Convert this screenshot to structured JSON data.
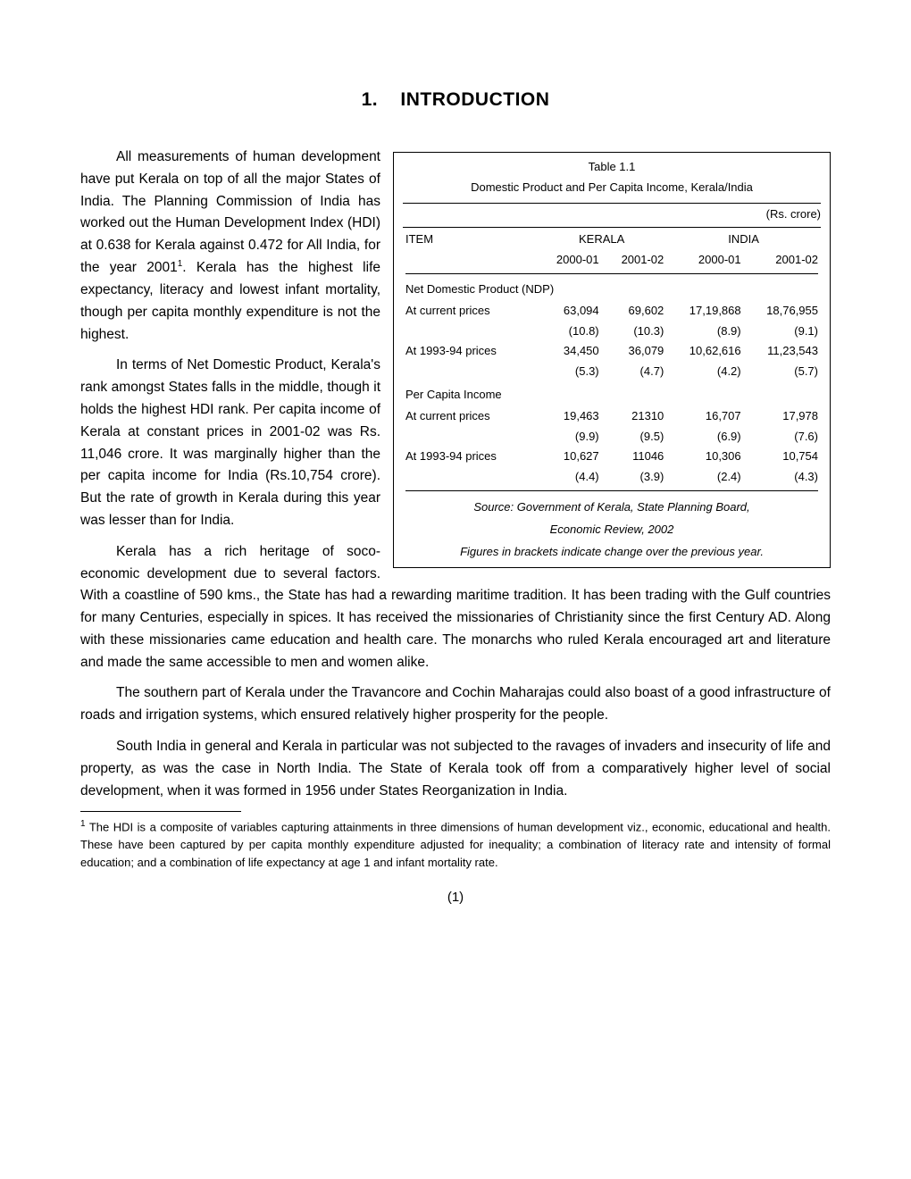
{
  "chapter": {
    "number": "1.",
    "title": "INTRODUCTION"
  },
  "paragraphs": {
    "p1a": "All measurements of human development have put Kerala on top of all the major States of India. The Planning Commission of India has worked out the Human Development Index (HDI) at 0.638 for Kerala against 0.472 for All India, for the year 2001",
    "p1sup": "1",
    "p1b": ". Kerala has the highest life expectancy, literacy and lowest infant mortality, though per capita monthly expenditure is not the highest.",
    "p2": "In terms of Net Domestic Product, Kerala's rank amongst States falls in the middle, though it holds the highest HDI rank. Per capita income of Kerala at constant prices in 2001-02 was Rs. 11,046 crore. It was marginally higher than the per capita income for India (Rs.10,754 crore). But the rate of growth in Kerala during this year was lesser than for India.",
    "p3": "Kerala has a rich heritage of soco-economic development due to several factors. With a coastline of 590 kms., the State has had a rewarding maritime tradition. It has been trading with the Gulf countries for many Centuries, especially in spices. It has received the missionaries of Christianity since the first Century AD. Along with these missionaries came education and health care. The monarchs who ruled Kerala encouraged art and literature and made the same accessible to men and women alike.",
    "p4": "The southern part of Kerala under the Travancore and Cochin Maharajas could also boast of a good infrastructure of roads and irrigation systems, which ensured relatively higher prosperity for the people.",
    "p5": "South India in general and Kerala in particular was not subjected to the ravages of invaders and insecurity of life and property, as was the case in North India. The State of Kerala took off from a comparatively higher level of social development, when it was formed in 1956 under States Reorganization in India."
  },
  "table": {
    "label": "Table 1.1",
    "subtitle": "Domestic Product and Per Capita Income, Kerala/India",
    "unit": "(Rs. crore)",
    "header": {
      "item": "ITEM",
      "region1": "KERALA",
      "region2": "INDIA",
      "y1": "2000-01",
      "y2": "2001-02",
      "y3": "2000-01",
      "y4": "2001-02"
    },
    "section1": "Net Domestic Product (NDP)",
    "rows1": [
      {
        "item": "At current prices",
        "v": [
          "63,094",
          "69,602",
          "17,19,868",
          "18,76,955"
        ],
        "b": [
          "(10.8)",
          "(10.3)",
          "(8.9)",
          "(9.1)"
        ]
      },
      {
        "item": "At 1993-94 prices",
        "v": [
          "34,450",
          "36,079",
          "10,62,616",
          "11,23,543"
        ],
        "b": [
          "(5.3)",
          "(4.7)",
          "(4.2)",
          "(5.7)"
        ]
      }
    ],
    "section2": "Per Capita Income",
    "rows2": [
      {
        "item": "At current prices",
        "v": [
          "19,463",
          "21310",
          "16,707",
          "17,978"
        ],
        "b": [
          "(9.9)",
          "(9.5)",
          "(6.9)",
          "(7.6)"
        ]
      },
      {
        "item": "At 1993-94 prices",
        "v": [
          "10,627",
          "11046",
          "10,306",
          "10,754"
        ],
        "b": [
          "(4.4)",
          "(3.9)",
          "(2.4)",
          "(4.3)"
        ]
      }
    ],
    "source1": "Source: Government of Kerala, State Planning Board,",
    "source2": "Economic Review, 2002",
    "source3": "Figures in brackets indicate change over the previous year."
  },
  "footnote": {
    "sup": "1",
    "text": " The HDI is a composite of variables capturing attainments in three dimensions of human development viz., economic, educational and health. These have been captured by per capita monthly expenditure adjusted for inequality; a combination of literacy rate and intensity of formal education; and a combination of life expectancy at age 1 and infant mortality rate."
  },
  "page_number": "(1)"
}
